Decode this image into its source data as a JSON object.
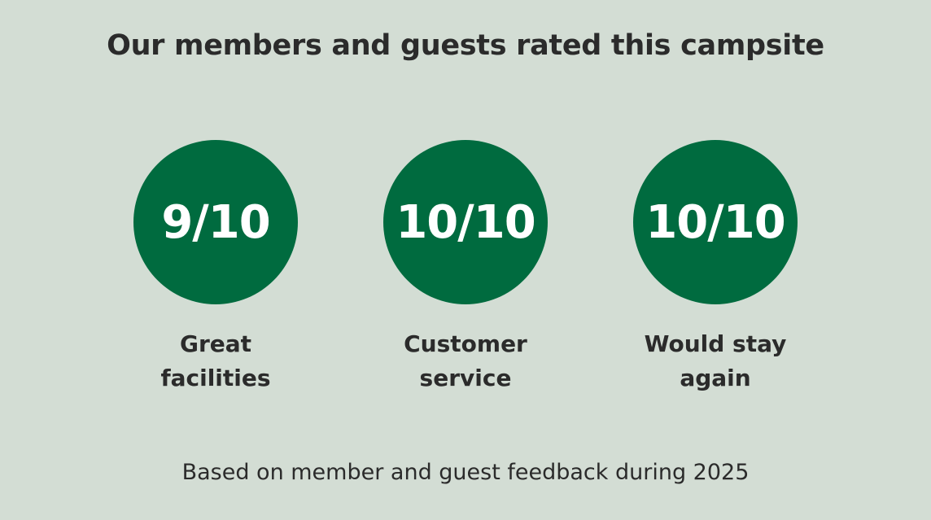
{
  "header": {
    "title": "Our members and guests rated this campsite"
  },
  "ratings": [
    {
      "score": "9/10",
      "label_lines": [
        "Great",
        "facilities"
      ]
    },
    {
      "score": "10/10",
      "label_lines": [
        "Customer",
        "service"
      ]
    },
    {
      "score": "10/10",
      "label_lines": [
        "Would stay",
        "again"
      ]
    }
  ],
  "footer": {
    "note": "Based on member and guest feedback during 2025"
  }
}
